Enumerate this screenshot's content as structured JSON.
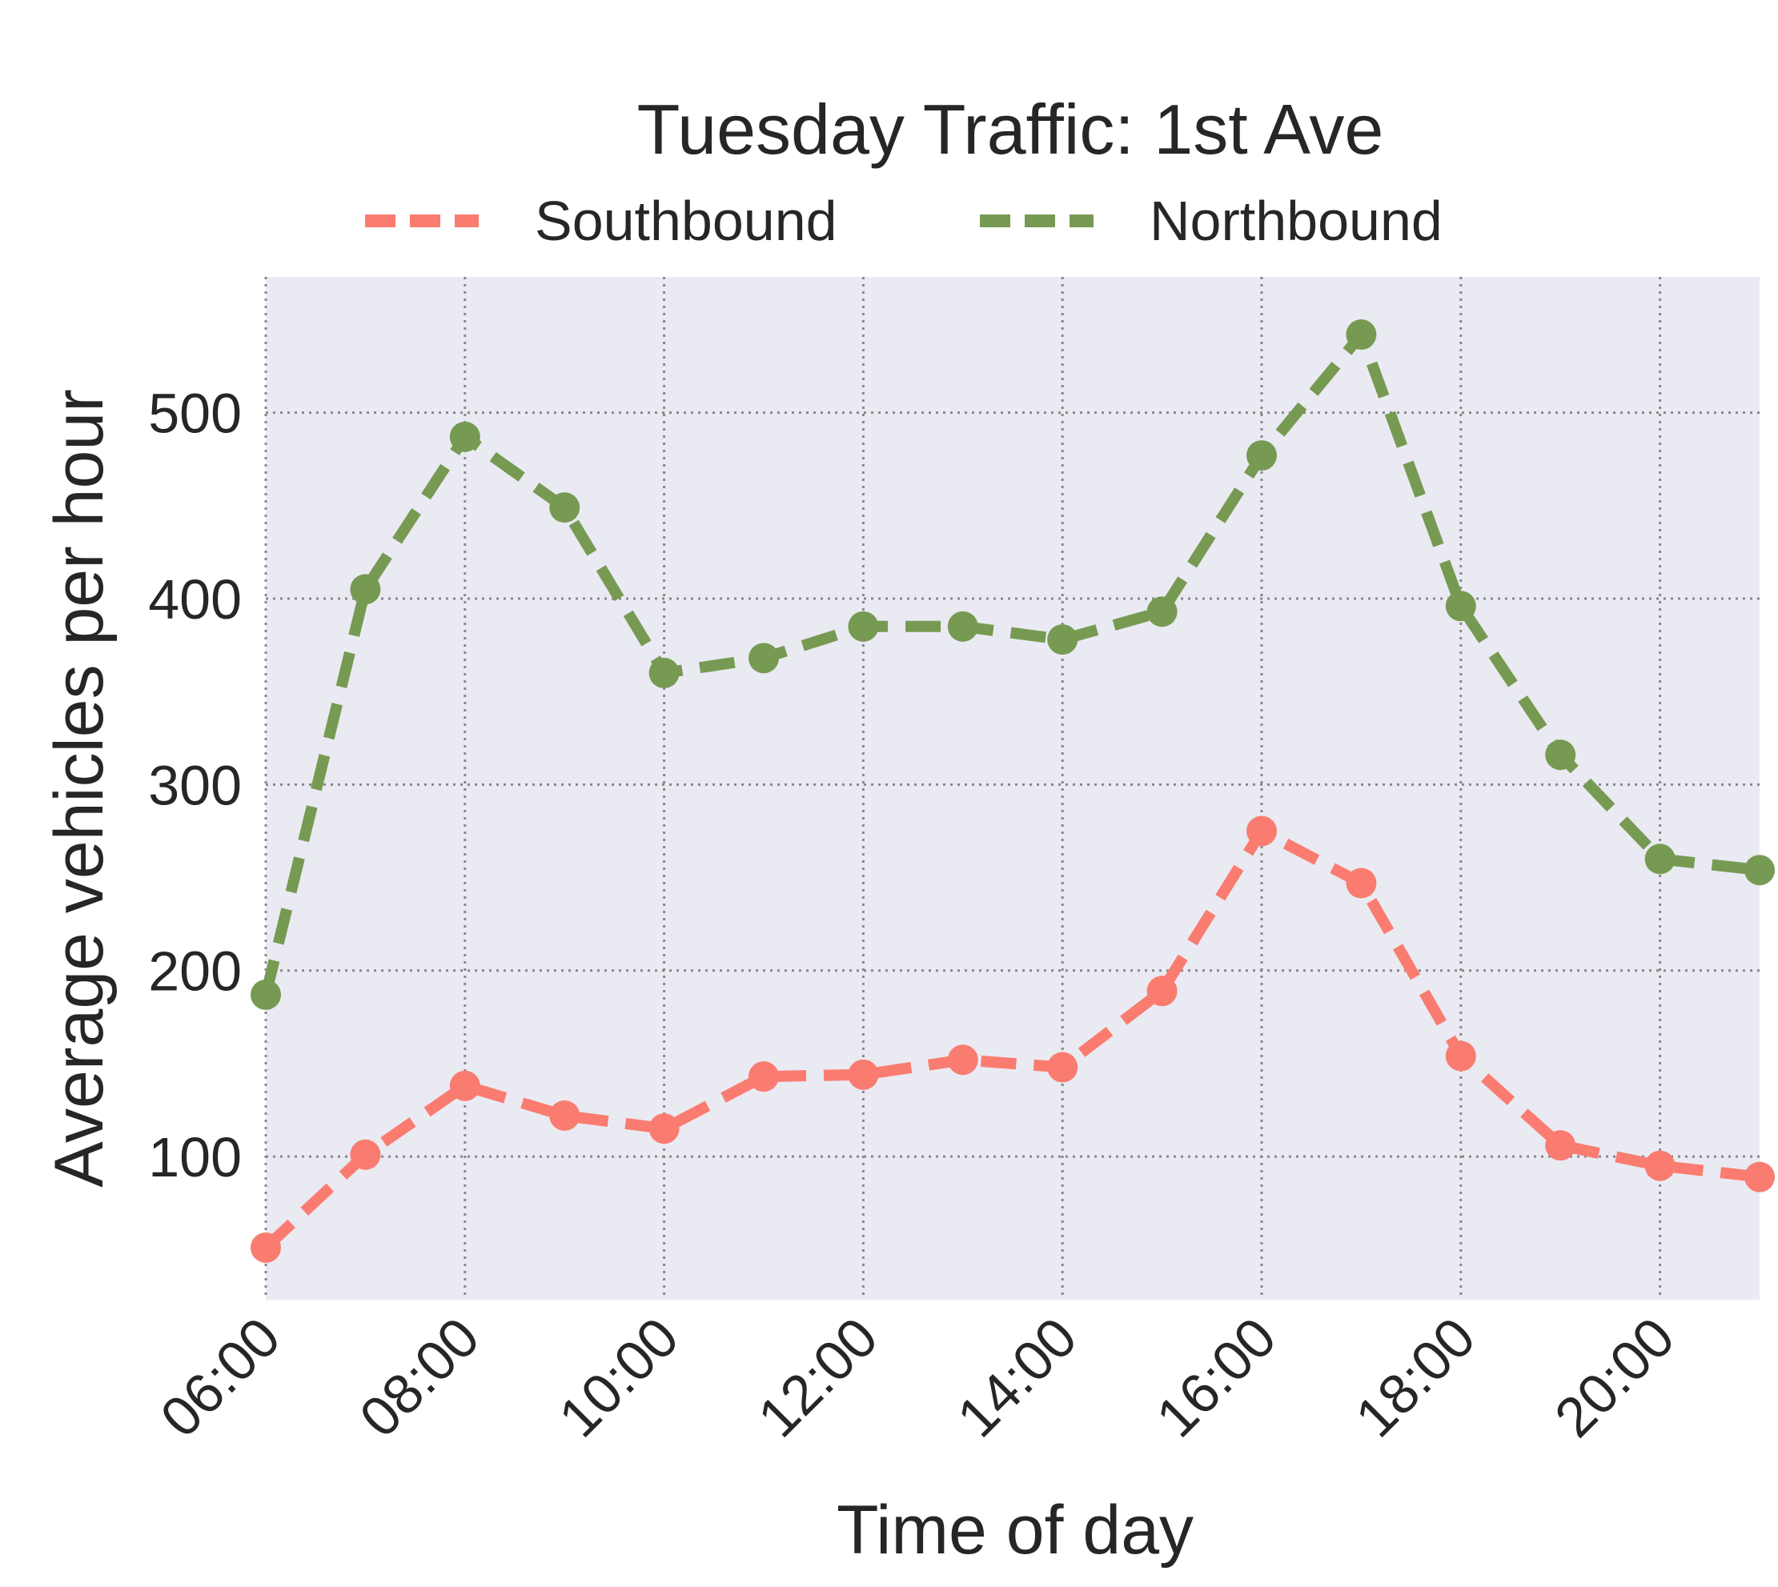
{
  "chart_data": {
    "type": "line",
    "title": "Tuesday Traffic: 1st Ave",
    "xlabel": "Time of day",
    "ylabel": "Average vehicles per hour",
    "x": [
      "06:00",
      "07:00",
      "08:00",
      "09:00",
      "10:00",
      "11:00",
      "12:00",
      "13:00",
      "14:00",
      "15:00",
      "16:00",
      "17:00",
      "18:00",
      "19:00",
      "20:00",
      "21:00"
    ],
    "xticks": [
      "06:00",
      "08:00",
      "10:00",
      "12:00",
      "14:00",
      "16:00",
      "18:00",
      "20:00"
    ],
    "yticks": [
      100,
      200,
      300,
      400,
      500
    ],
    "ylim": [
      23,
      573
    ],
    "xlim": [
      "06:00",
      "21:00"
    ],
    "grid": true,
    "legend_position": "top-center",
    "series": [
      {
        "name": "Southbound",
        "color": "#fa7c70",
        "values": [
          51,
          101,
          138,
          122,
          115,
          143,
          144,
          152,
          148,
          189,
          275,
          247,
          154,
          106,
          95,
          89
        ]
      },
      {
        "name": "Northbound",
        "color": "#779a53",
        "values": [
          187,
          405,
          487,
          449,
          360,
          368,
          385,
          385,
          378,
          393,
          477,
          542,
          396,
          316,
          260,
          254
        ]
      }
    ]
  }
}
